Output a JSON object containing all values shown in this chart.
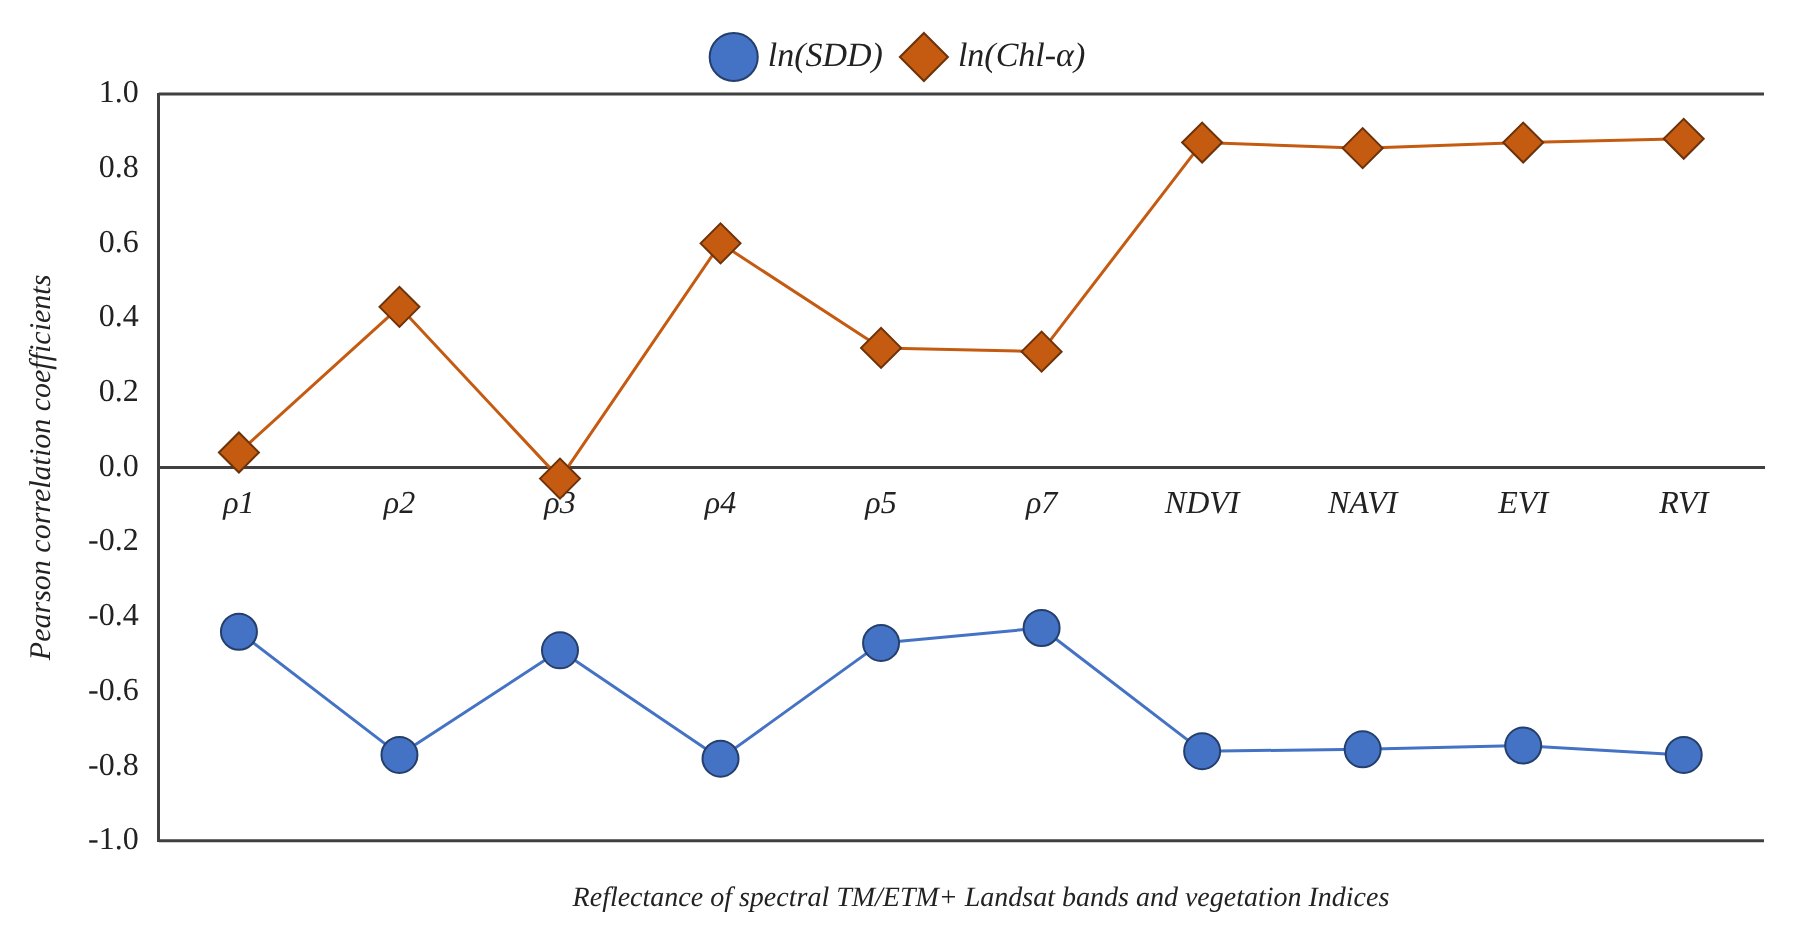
{
  "chart_data": {
    "type": "line",
    "xlabel": "Reflectance of spectral TM/ETM+ Landsat bands and vegetation Indices",
    "ylabel": "Pearson correlation coefficients",
    "categories": [
      "ρ1",
      "ρ2",
      "ρ3",
      "ρ4",
      "ρ5",
      "ρ7",
      "NDVI",
      "NAVI",
      "EVI",
      "RVI"
    ],
    "series": [
      {
        "name": "ln(SDD)",
        "color": "#4472c4",
        "marker": "circle",
        "values": [
          -0.44,
          -0.77,
          -0.49,
          -0.78,
          -0.47,
          -0.43,
          -0.76,
          -0.755,
          -0.745,
          -0.77
        ]
      },
      {
        "name": "ln(Chl-α)",
        "color": "#c55a11",
        "marker": "diamond",
        "values": [
          0.04,
          0.43,
          -0.03,
          0.6,
          0.32,
          0.31,
          0.87,
          0.855,
          0.87,
          0.88
        ]
      }
    ],
    "ylim": [
      -1,
      1
    ],
    "yticks": [
      {
        "value": -1,
        "label": "-1.0"
      },
      {
        "value": -0.8,
        "label": "-0.8"
      },
      {
        "value": -0.6,
        "label": "-0.6"
      },
      {
        "value": -0.4,
        "label": "-0.4"
      },
      {
        "value": -0.2,
        "label": "-0.2"
      },
      {
        "value": 0,
        "label": "0.0"
      },
      {
        "value": 0.2,
        "label": "0.2"
      },
      {
        "value": 0.4,
        "label": "0.4"
      },
      {
        "value": 0.6,
        "label": "0.6"
      },
      {
        "value": 0.8,
        "label": "0.8"
      },
      {
        "value": 1,
        "label": "1.0"
      }
    ],
    "grid": false,
    "legend": "top",
    "line_style": "solid"
  }
}
